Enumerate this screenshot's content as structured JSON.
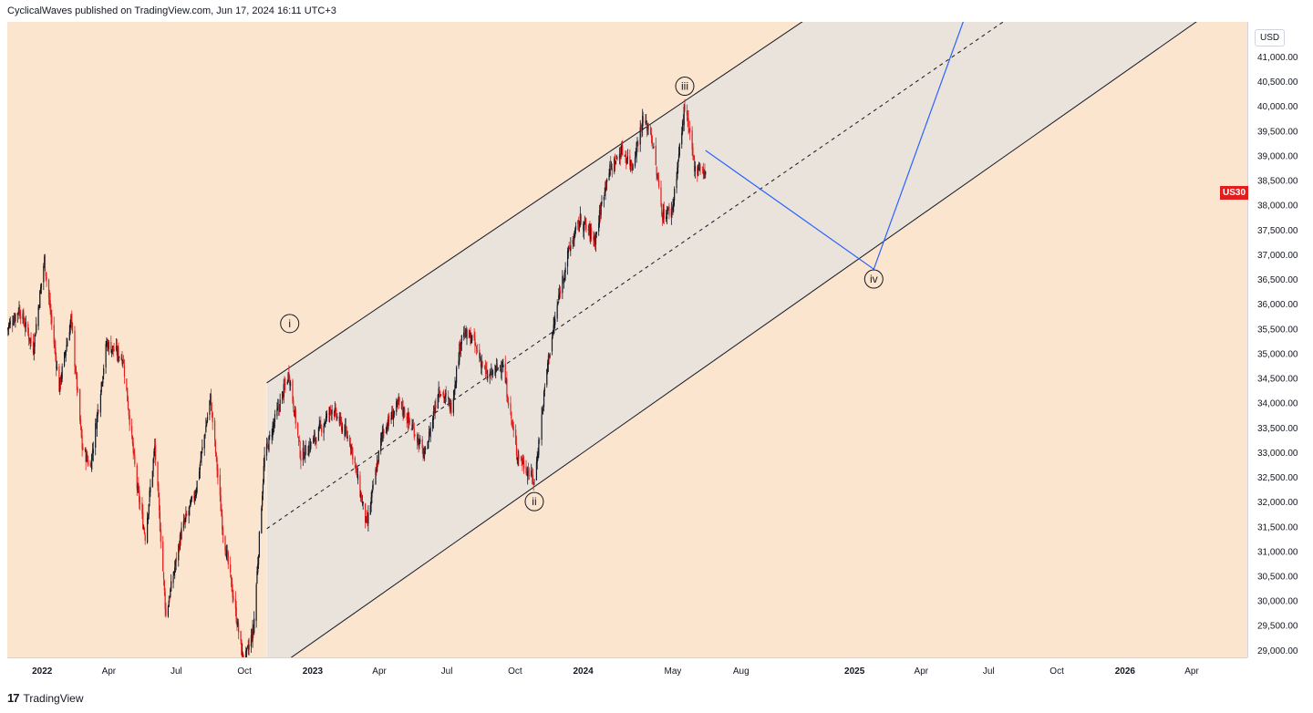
{
  "header": {
    "published": "CyclicalWaves published on TradingView.com, Jun 17, 2024 16:11 UTC+3"
  },
  "footer": {
    "brand": "TradingView",
    "logo_glyph": "17"
  },
  "axis": {
    "currency": "USD",
    "symbol": "US30",
    "symbol_color": "#e31c1c"
  },
  "colors": {
    "background": "#fbe5cf",
    "channel_fill": "#e8e2dc",
    "up": "#131722",
    "down": "#e31c1c",
    "projection": "#2962ff"
  },
  "chart_data": {
    "type": "candlestick",
    "x_range": [
      "2021-11-15",
      "2026-06-15"
    ],
    "ylim": [
      28850,
      41700
    ],
    "y_ticks": [
      29000,
      29500,
      30000,
      30500,
      31000,
      31500,
      32000,
      32500,
      33000,
      33500,
      34000,
      34500,
      35000,
      35500,
      36000,
      36500,
      37000,
      37500,
      38000,
      38500,
      39000,
      39500,
      40000,
      40500,
      41000
    ],
    "y_tick_labels": [
      "29,000.00",
      "29,500.00",
      "30,000.00",
      "30,500.00",
      "31,000.00",
      "31,500.00",
      "32,000.00",
      "32,500.00",
      "33,000.00",
      "33,500.00",
      "34,000.00",
      "34,500.00",
      "35,000.00",
      "35,500.00",
      "36,000.00",
      "36,500.00",
      "37,000.00",
      "37,500.00",
      "38,000.00",
      "38,500.00",
      "39,000.00",
      "39,500.00",
      "40,000.00",
      "40,500.00",
      "41,000.00"
    ],
    "x_ticks": [
      {
        "label": "2022",
        "date": "2022-01-01",
        "bold": true
      },
      {
        "label": "Apr",
        "date": "2022-04-01",
        "bold": false
      },
      {
        "label": "Jul",
        "date": "2022-07-01",
        "bold": false
      },
      {
        "label": "Oct",
        "date": "2022-10-01",
        "bold": false
      },
      {
        "label": "2023",
        "date": "2023-01-01",
        "bold": true
      },
      {
        "label": "Apr",
        "date": "2023-04-01",
        "bold": false
      },
      {
        "label": "Jul",
        "date": "2023-07-01",
        "bold": false
      },
      {
        "label": "Oct",
        "date": "2023-10-01",
        "bold": false
      },
      {
        "label": "2024",
        "date": "2024-01-01",
        "bold": true
      },
      {
        "label": "May",
        "date": "2024-05-01",
        "bold": false
      },
      {
        "label": "Aug",
        "date": "2024-08-01",
        "bold": false
      },
      {
        "label": "2025",
        "date": "2025-01-01",
        "bold": true
      },
      {
        "label": "Apr",
        "date": "2025-04-01",
        "bold": false
      },
      {
        "label": "Jul",
        "date": "2025-07-01",
        "bold": false
      },
      {
        "label": "Oct",
        "date": "2025-10-01",
        "bold": false
      },
      {
        "label": "2026",
        "date": "2026-01-01",
        "bold": true
      },
      {
        "label": "Apr",
        "date": "2026-04-01",
        "bold": false
      }
    ],
    "price_path": [
      [
        "2021-11-15",
        35500
      ],
      [
        "2021-12-01",
        35900
      ],
      [
        "2021-12-20",
        35100
      ],
      [
        "2022-01-04",
        36900
      ],
      [
        "2022-01-24",
        34300
      ],
      [
        "2022-02-09",
        35700
      ],
      [
        "2022-02-24",
        33100
      ],
      [
        "2022-03-07",
        32700
      ],
      [
        "2022-03-29",
        35200
      ],
      [
        "2022-04-20",
        34900
      ],
      [
        "2022-05-09",
        32300
      ],
      [
        "2022-05-20",
        31300
      ],
      [
        "2022-06-02",
        33100
      ],
      [
        "2022-06-17",
        29700
      ],
      [
        "2022-07-08",
        31400
      ],
      [
        "2022-07-27",
        32200
      ],
      [
        "2022-08-16",
        34100
      ],
      [
        "2022-09-02",
        31400
      ],
      [
        "2022-09-30",
        28700
      ],
      [
        "2022-10-13",
        29400
      ],
      [
        "2022-10-28",
        32900
      ],
      [
        "2022-11-10",
        33600
      ],
      [
        "2022-11-30",
        34600
      ],
      [
        "2022-12-16",
        32900
      ],
      [
        "2023-01-05",
        33300
      ],
      [
        "2023-01-27",
        33900
      ],
      [
        "2023-02-21",
        33200
      ],
      [
        "2023-03-15",
        31500
      ],
      [
        "2023-04-05",
        33400
      ],
      [
        "2023-04-28",
        34000
      ],
      [
        "2023-05-19",
        33400
      ],
      [
        "2023-06-01",
        32900
      ],
      [
        "2023-06-20",
        34300
      ],
      [
        "2023-07-07",
        33900
      ],
      [
        "2023-07-21",
        35400
      ],
      [
        "2023-08-04",
        35300
      ],
      [
        "2023-08-25",
        34500
      ],
      [
        "2023-09-14",
        34800
      ],
      [
        "2023-10-03",
        33000
      ],
      [
        "2023-10-27",
        32400
      ],
      [
        "2023-11-14",
        34800
      ],
      [
        "2023-12-01",
        36300
      ],
      [
        "2023-12-13",
        37100
      ],
      [
        "2023-12-28",
        37700
      ],
      [
        "2024-01-17",
        37300
      ],
      [
        "2024-02-02",
        38600
      ],
      [
        "2024-02-22",
        39100
      ],
      [
        "2024-03-07",
        38800
      ],
      [
        "2024-03-21",
        39700
      ],
      [
        "2024-04-01",
        39500
      ],
      [
        "2024-04-17",
        37800
      ],
      [
        "2024-04-30",
        37900
      ],
      [
        "2024-05-17",
        40000
      ],
      [
        "2024-05-31",
        38700
      ],
      [
        "2024-06-07",
        38800
      ],
      [
        "2024-06-14",
        38600
      ]
    ],
    "channel": {
      "upper": [
        [
          "2022-10-31",
          34400
        ],
        [
          "2024-05-17",
          40100
        ]
      ],
      "lower": [
        [
          "2022-10-31",
          28500
        ],
        [
          "2023-10-27",
          32300
        ]
      ],
      "start": "2022-10-31",
      "midline_style": "dashed"
    },
    "projection": [
      [
        "2024-06-14",
        39100
      ],
      [
        "2025-01-27",
        36700
      ],
      [
        "2025-05-30",
        41800
      ]
    ],
    "wave_labels": [
      {
        "label": "i",
        "date": "2022-12-01",
        "price": 35600,
        "anchor": "above"
      },
      {
        "label": "ii",
        "date": "2023-10-27",
        "price": 32000,
        "anchor": "below"
      },
      {
        "label": "iii",
        "date": "2024-05-17",
        "price": 40400,
        "anchor": "above"
      },
      {
        "label": "iv",
        "date": "2025-01-27",
        "price": 36500,
        "anchor": "below"
      }
    ]
  }
}
